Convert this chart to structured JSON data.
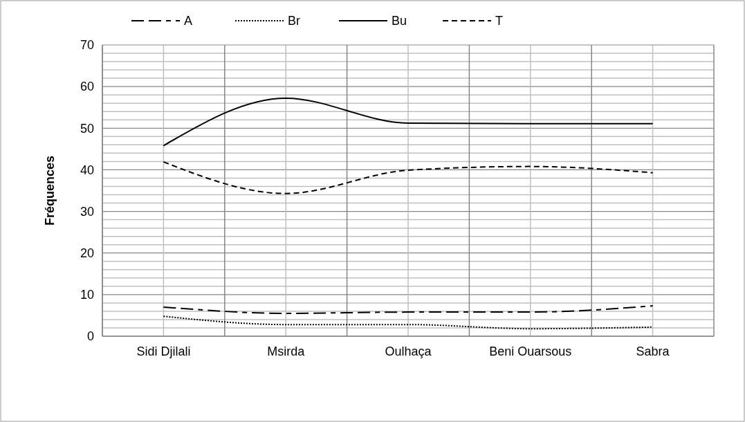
{
  "chart_data": {
    "type": "line",
    "ylabel": "Fréquences",
    "categories": [
      "Sidi Djilali",
      "Msirda",
      "Oulhaça",
      "Beni Ouarsous",
      "Sabra"
    ],
    "series": [
      {
        "name": "A",
        "color": "#000000",
        "line_style": "dashed",
        "values": [
          7.0,
          5.5,
          5.8,
          5.8,
          7.3
        ]
      },
      {
        "name": "Br",
        "color": "#000000",
        "line_style": "dotted",
        "values": [
          4.8,
          2.8,
          2.8,
          1.8,
          2.2
        ]
      },
      {
        "name": "Bu",
        "color": "#000000",
        "line_style": "solid",
        "values": [
          45.8,
          57.2,
          51.2,
          51.1,
          51.1
        ]
      },
      {
        "name": "T",
        "color": "#000000",
        "line_style": "dashed",
        "values": [
          41.9,
          34.3,
          39.9,
          40.8,
          39.3
        ]
      }
    ],
    "ylim": [
      0,
      70
    ],
    "yticks": [
      0,
      {
        "value": 2,
        "label": null
      },
      {
        "value": 4,
        "label": null
      },
      {
        "value": 6,
        "label": null
      },
      {
        "value": 8,
        "label": null
      },
      10,
      {
        "value": 12,
        "label": null
      },
      {
        "value": 14,
        "label": null
      },
      {
        "value": 16,
        "label": null
      },
      {
        "value": 18,
        "label": null
      },
      20,
      {
        "value": 22,
        "label": null
      },
      {
        "value": 24,
        "label": null
      },
      {
        "value": 26,
        "label": null
      },
      {
        "value": 28,
        "label": null
      },
      30,
      {
        "value": 32,
        "label": null
      },
      {
        "value": 34,
        "label": null
      },
      {
        "value": 36,
        "label": null
      },
      {
        "value": 38,
        "label": null
      },
      40,
      {
        "value": 42,
        "label": null
      },
      {
        "value": 44,
        "label": null
      },
      {
        "value": 46,
        "label": null
      },
      {
        "value": 48,
        "label": null
      },
      50,
      {
        "value": 52,
        "label": null
      },
      {
        "value": 54,
        "label": null
      },
      {
        "value": 56,
        "label": null
      },
      {
        "value": 58,
        "label": null
      },
      60,
      {
        "value": 62,
        "label": null
      },
      {
        "value": 64,
        "label": null
      },
      {
        "value": 66,
        "label": null
      },
      {
        "value": 68,
        "label": null
      },
      70
    ],
    "grid": true,
    "legend": "top"
  }
}
